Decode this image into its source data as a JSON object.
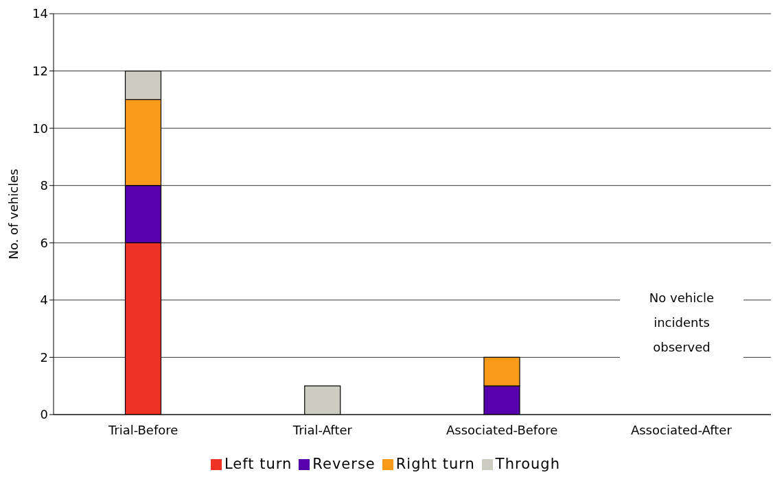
{
  "chart_data": {
    "type": "bar",
    "stacked": true,
    "ylabel": "No. of vehicles",
    "categories": [
      "Trial-Before",
      "Trial-After",
      "Associated-Before",
      "Associated-After"
    ],
    "series": [
      {
        "name": "Left turn",
        "color": "#ee3224",
        "values": [
          6,
          null,
          null,
          null
        ]
      },
      {
        "name": "Reverse",
        "color": "#5500aa",
        "values": [
          2,
          null,
          1,
          null
        ]
      },
      {
        "name": "Right turn",
        "color": "#fa9a1a",
        "values": [
          3,
          null,
          1,
          null
        ]
      },
      {
        "name": "Through",
        "color": "#ccccc0",
        "values": [
          1,
          1,
          null,
          null
        ]
      }
    ],
    "ylim": [
      0,
      14
    ],
    "yticks": [
      0,
      2,
      4,
      6,
      8,
      10,
      12,
      14
    ],
    "grid": "y",
    "legend": "bottom",
    "annotations": [
      "No vehicle incidents observed"
    ]
  }
}
